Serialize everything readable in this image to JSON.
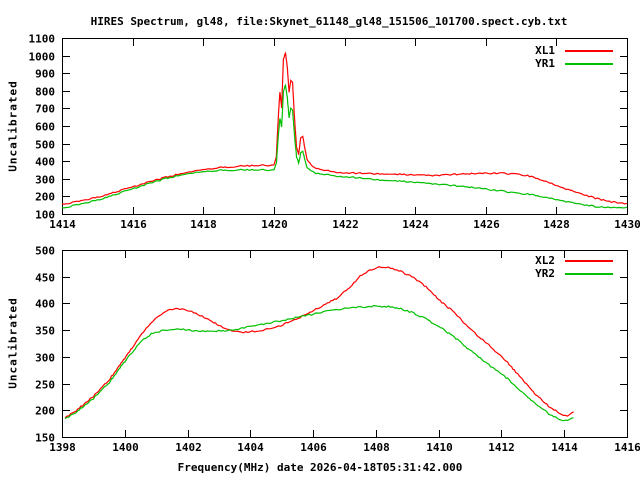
{
  "colors": {
    "background": "#ffffff",
    "axis": "#000000",
    "series_red": "#ff0000",
    "series_green": "#00c000"
  },
  "chart_data": [
    {
      "type": "line",
      "title": "HIRES Spectrum, gl48, file:Skynet_61148_gl48_151506_101700.spect.cyb.txt",
      "xlabel": "",
      "ylabel": "Uncalibrated",
      "xlim": [
        1414,
        1430
      ],
      "ylim": [
        100,
        1100
      ],
      "xticks": [
        1414,
        1416,
        1418,
        1420,
        1422,
        1424,
        1426,
        1428,
        1430
      ],
      "yticks": [
        100,
        200,
        300,
        400,
        500,
        600,
        700,
        800,
        900,
        1000,
        1100
      ],
      "grid": false,
      "legend_position": "top-right",
      "series": [
        {
          "name": "XL1",
          "color": "#ff0000",
          "points": [
            [
              1414.0,
              158
            ],
            [
              1414.3,
              165
            ],
            [
              1414.6,
              176
            ],
            [
              1415.0,
              196
            ],
            [
              1415.5,
              224
            ],
            [
              1416.0,
              254
            ],
            [
              1416.5,
              284
            ],
            [
              1417.0,
              312
            ],
            [
              1417.5,
              336
            ],
            [
              1418.0,
              354
            ],
            [
              1418.5,
              364
            ],
            [
              1419.0,
              371
            ],
            [
              1419.5,
              375
            ],
            [
              1420.0,
              379
            ],
            [
              1420.07,
              420
            ],
            [
              1420.12,
              630
            ],
            [
              1420.17,
              795
            ],
            [
              1420.22,
              705
            ],
            [
              1420.27,
              980
            ],
            [
              1420.33,
              1015
            ],
            [
              1420.38,
              935
            ],
            [
              1420.43,
              790
            ],
            [
              1420.48,
              858
            ],
            [
              1420.53,
              845
            ],
            [
              1420.58,
              660
            ],
            [
              1420.64,
              485
            ],
            [
              1420.7,
              436
            ],
            [
              1420.76,
              532
            ],
            [
              1420.82,
              541
            ],
            [
              1420.88,
              468
            ],
            [
              1420.94,
              409
            ],
            [
              1421.05,
              378
            ],
            [
              1421.25,
              356
            ],
            [
              1421.6,
              342
            ],
            [
              1422.0,
              333
            ],
            [
              1422.5,
              331
            ],
            [
              1423.0,
              329
            ],
            [
              1423.5,
              325
            ],
            [
              1424.0,
              322
            ],
            [
              1424.5,
              320
            ],
            [
              1425.0,
              324
            ],
            [
              1425.6,
              330
            ],
            [
              1426.3,
              332
            ],
            [
              1426.9,
              329
            ],
            [
              1427.3,
              311
            ],
            [
              1427.7,
              284
            ],
            [
              1428.1,
              253
            ],
            [
              1428.5,
              228
            ],
            [
              1428.8,
              210
            ],
            [
              1429.1,
              190
            ],
            [
              1429.5,
              170
            ],
            [
              1429.8,
              162
            ],
            [
              1430.0,
              160
            ]
          ]
        },
        {
          "name": "YR1",
          "color": "#00c000",
          "points": [
            [
              1414.0,
              136
            ],
            [
              1414.3,
              146
            ],
            [
              1414.6,
              158
            ],
            [
              1415.0,
              180
            ],
            [
              1415.5,
              210
            ],
            [
              1416.0,
              243
            ],
            [
              1416.5,
              275
            ],
            [
              1417.0,
              305
            ],
            [
              1417.5,
              328
            ],
            [
              1418.0,
              342
            ],
            [
              1418.5,
              348
            ],
            [
              1419.0,
              350
            ],
            [
              1419.5,
              350
            ],
            [
              1420.0,
              351
            ],
            [
              1420.07,
              385
            ],
            [
              1420.12,
              530
            ],
            [
              1420.17,
              645
            ],
            [
              1420.22,
              597
            ],
            [
              1420.27,
              798
            ],
            [
              1420.33,
              833
            ],
            [
              1420.38,
              765
            ],
            [
              1420.43,
              645
            ],
            [
              1420.48,
              700
            ],
            [
              1420.53,
              688
            ],
            [
              1420.58,
              556
            ],
            [
              1420.64,
              428
            ],
            [
              1420.7,
              388
            ],
            [
              1420.76,
              448
            ],
            [
              1420.82,
              456
            ],
            [
              1420.88,
              406
            ],
            [
              1420.94,
              363
            ],
            [
              1421.05,
              343
            ],
            [
              1421.25,
              329
            ],
            [
              1421.6,
              320
            ],
            [
              1422.0,
              311
            ],
            [
              1422.5,
              303
            ],
            [
              1423.0,
              294
            ],
            [
              1423.5,
              287
            ],
            [
              1424.0,
              280
            ],
            [
              1424.5,
              273
            ],
            [
              1425.0,
              263
            ],
            [
              1425.6,
              252
            ],
            [
              1426.3,
              234
            ],
            [
              1426.9,
              220
            ],
            [
              1427.3,
              209
            ],
            [
              1427.7,
              193
            ],
            [
              1428.1,
              177
            ],
            [
              1428.5,
              163
            ],
            [
              1428.8,
              153
            ],
            [
              1429.1,
              143
            ],
            [
              1429.4,
              137
            ],
            [
              1429.7,
              134
            ],
            [
              1430.0,
              139
            ]
          ]
        }
      ]
    },
    {
      "type": "line",
      "title": "",
      "xlabel": "Frequency(MHz) date 2026-04-18T05:31:42.000",
      "ylabel": "Uncalibrated",
      "xlim": [
        1398,
        1416
      ],
      "ylim": [
        150,
        500
      ],
      "xticks": [
        1398,
        1400,
        1402,
        1404,
        1406,
        1408,
        1410,
        1412,
        1414,
        1416
      ],
      "yticks": [
        150,
        200,
        250,
        300,
        350,
        400,
        450,
        500
      ],
      "grid": false,
      "legend_position": "top-right",
      "series": [
        {
          "name": "XL2",
          "color": "#ff0000",
          "points": [
            [
              1398.1,
              186
            ],
            [
              1398.4,
              197
            ],
            [
              1399.0,
              226
            ],
            [
              1399.5,
              257
            ],
            [
              1400.0,
              297
            ],
            [
              1400.5,
              340
            ],
            [
              1400.9,
              368
            ],
            [
              1401.3,
              385
            ],
            [
              1401.6,
              390
            ],
            [
              1401.9,
              389
            ],
            [
              1402.2,
              383
            ],
            [
              1402.6,
              372
            ],
            [
              1403.0,
              359
            ],
            [
              1403.4,
              349
            ],
            [
              1403.7,
              346
            ],
            [
              1404.0,
              347
            ],
            [
              1404.4,
              350
            ],
            [
              1404.9,
              357
            ],
            [
              1405.4,
              369
            ],
            [
              1405.9,
              383
            ],
            [
              1406.4,
              399
            ],
            [
              1406.8,
              411
            ],
            [
              1407.2,
              432
            ],
            [
              1407.5,
              451
            ],
            [
              1407.8,
              462
            ],
            [
              1408.1,
              468
            ],
            [
              1408.4,
              467
            ],
            [
              1408.8,
              460
            ],
            [
              1409.2,
              448
            ],
            [
              1409.6,
              431
            ],
            [
              1410.0,
              407
            ],
            [
              1410.5,
              383
            ],
            [
              1411.0,
              352
            ],
            [
              1411.6,
              322
            ],
            [
              1412.2,
              289
            ],
            [
              1412.7,
              255
            ],
            [
              1413.1,
              229
            ],
            [
              1413.5,
              208
            ],
            [
              1413.9,
              193
            ],
            [
              1414.1,
              189
            ],
            [
              1414.3,
              197
            ]
          ]
        },
        {
          "name": "YR2",
          "color": "#00c000",
          "points": [
            [
              1398.1,
              184
            ],
            [
              1398.4,
              194
            ],
            [
              1399.0,
              222
            ],
            [
              1399.5,
              252
            ],
            [
              1400.0,
              291
            ],
            [
              1400.5,
              328
            ],
            [
              1400.9,
              345
            ],
            [
              1401.3,
              350
            ],
            [
              1401.8,
              352
            ],
            [
              1402.2,
              349
            ],
            [
              1402.7,
              348
            ],
            [
              1403.2,
              349
            ],
            [
              1403.6,
              352
            ],
            [
              1404.0,
              357
            ],
            [
              1404.5,
              362
            ],
            [
              1405.0,
              368
            ],
            [
              1405.5,
              374
            ],
            [
              1406.0,
              380
            ],
            [
              1406.5,
              386
            ],
            [
              1407.0,
              390
            ],
            [
              1407.5,
              393
            ],
            [
              1408.0,
              395
            ],
            [
              1408.4,
              394
            ],
            [
              1408.8,
              390
            ],
            [
              1409.2,
              382
            ],
            [
              1409.6,
              371
            ],
            [
              1410.0,
              357
            ],
            [
              1410.5,
              337
            ],
            [
              1411.0,
              312
            ],
            [
              1411.6,
              285
            ],
            [
              1412.2,
              259
            ],
            [
              1412.7,
              232
            ],
            [
              1413.1,
              212
            ],
            [
              1413.5,
              194
            ],
            [
              1413.9,
              182
            ],
            [
              1414.1,
              181
            ],
            [
              1414.3,
              186
            ]
          ]
        }
      ]
    }
  ]
}
